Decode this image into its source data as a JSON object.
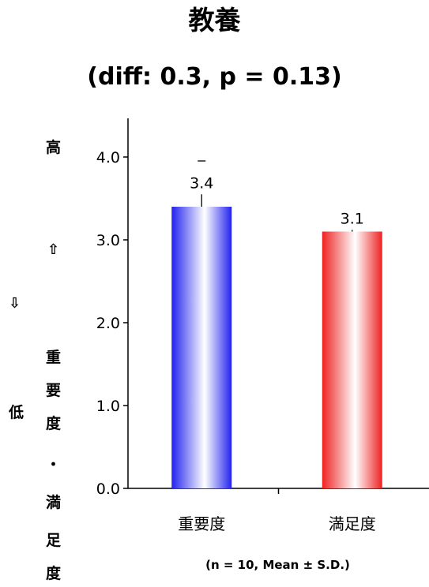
{
  "chart_data": {
    "type": "bar",
    "title": "教養",
    "subtitle": "(diff: 0.3, p = 0.13)",
    "categories": [
      "重要度",
      "満足度"
    ],
    "values": [
      3.4,
      3.1
    ],
    "value_labels": [
      "3.4",
      "3.1"
    ],
    "error_top": [
      3.55,
      3.12
    ],
    "ylim": [
      0,
      4.5
    ],
    "yticks": [
      "0.0",
      "1.0",
      "2.0",
      "3.0",
      "4.0"
    ],
    "bar_colors": [
      "#2222ee",
      "#ee2222"
    ],
    "ylabel": {
      "high": "高",
      "up_arrow": "⇧",
      "down_arrow": "⇩",
      "low": "低",
      "text": [
        "重",
        "要",
        "度",
        "・",
        "満",
        "足",
        "度"
      ]
    },
    "footnote": "(n = 10, Mean ± S.D.)",
    "grid": false
  }
}
